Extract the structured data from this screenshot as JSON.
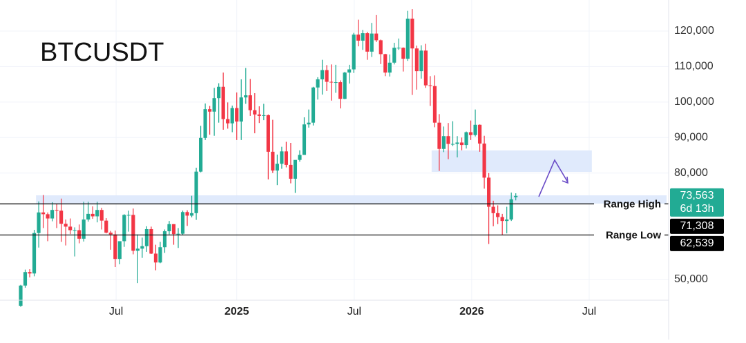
{
  "chart_data": {
    "type": "candlestick",
    "title": "BTCUSDT",
    "open": [
      42600,
      48300,
      52100,
      51700,
      63100,
      68900,
      68400,
      67200,
      69600,
      69400,
      65700,
      64900,
      63900,
      63900,
      61500,
      66900,
      68500,
      67800,
      69600,
      66600,
      63200,
      62700,
      55800,
      60800,
      68200,
      68200,
      58100,
      58700,
      59400,
      64200,
      57300,
      54800,
      59100,
      63600,
      65600,
      62800,
      62900,
      69000,
      68000,
      68700,
      80400,
      89900,
      98000,
      97300,
      101100,
      104300,
      95200,
      94000,
      98300,
      94500,
      101300,
      101900,
      97700,
      96500,
      96100,
      96300,
      86000,
      80700,
      82600,
      86100,
      82300,
      78400,
      83700,
      85100,
      93700,
      94200,
      104100,
      106400,
      109000,
      105700,
      105600,
      105600,
      100900,
      108300,
      109200,
      119000,
      117300,
      119400,
      114200,
      119300,
      117400,
      113500,
      108300,
      111100,
      115300,
      115300,
      112200,
      123500,
      115100,
      108700,
      114500,
      104700,
      104500,
      94200,
      86800,
      90400,
      88200,
      88200,
      88600,
      87900,
      91500,
      90700,
      93600,
      88300,
      78700,
      70500,
      68700,
      67600,
      66500,
      66900,
      73200
    ],
    "high": [
      48500,
      52800,
      52900,
      64000,
      72000,
      73800,
      68900,
      71800,
      71300,
      72800,
      66900,
      67200,
      64700,
      65500,
      71900,
      71900,
      70600,
      71900,
      70200,
      67300,
      63700,
      63800,
      60800,
      68400,
      69400,
      70000,
      62700,
      61800,
      65000,
      64900,
      59800,
      60600,
      64100,
      66500,
      65600,
      64500,
      69400,
      69500,
      73600,
      81500,
      93300,
      99600,
      98900,
      104000,
      105300,
      108300,
      99900,
      99000,
      102700,
      106400,
      109600,
      106500,
      102500,
      98800,
      99500,
      96500,
      95000,
      85200,
      87400,
      88800,
      88500,
      83500,
      86400,
      95700,
      97900,
      104300,
      107000,
      111900,
      110400,
      110600,
      110500,
      106100,
      108500,
      110500,
      119500,
      123200,
      120300,
      119800,
      122300,
      124500,
      117600,
      113600,
      113400,
      116700,
      117900,
      115400,
      125700,
      126200,
      115900,
      116000,
      116400,
      107300,
      107500,
      96600,
      93100,
      94100,
      94600,
      90400,
      90000,
      91700,
      94800,
      97900,
      93700,
      90500,
      80000,
      72200,
      70900,
      68500,
      70500,
      74500,
      74300
    ],
    "low": [
      42300,
      47700,
      50600,
      50900,
      59000,
      64500,
      60800,
      66400,
      64500,
      60600,
      59600,
      62800,
      56500,
      60200,
      60700,
      66300,
      67100,
      66100,
      64100,
      63000,
      58400,
      53500,
      54300,
      59200,
      63500,
      57100,
      49000,
      56100,
      57800,
      57200,
      52600,
      54600,
      57500,
      62700,
      59800,
      58900,
      62600,
      65100,
      67500,
      66800,
      80200,
      89300,
      90800,
      90500,
      94200,
      92200,
      92500,
      91500,
      89300,
      89300,
      99500,
      96100,
      91200,
      94100,
      94900,
      78200,
      80000,
      76600,
      81200,
      81600,
      77100,
      74400,
      83200,
      85100,
      92800,
      93400,
      100700,
      102100,
      103100,
      100400,
      102600,
      98200,
      100800,
      105200,
      108200,
      115700,
      114700,
      111900,
      112700,
      116900,
      110700,
      107300,
      107200,
      110600,
      114700,
      108600,
      111600,
      102000,
      103500,
      106600,
      104000,
      98900,
      92900,
      80600,
      85900,
      83900,
      87600,
      84400,
      86400,
      86900,
      89300,
      90300,
      86000,
      75600,
      60000,
      65000,
      65600,
      62500,
      63000,
      66500,
      72300
    ],
    "close": [
      48300,
      52100,
      51700,
      63100,
      68900,
      68400,
      67200,
      69600,
      69400,
      65700,
      64900,
      63900,
      63900,
      61500,
      66900,
      68500,
      67800,
      69600,
      66600,
      63200,
      62700,
      55800,
      60800,
      68200,
      68200,
      58100,
      58700,
      59400,
      64200,
      57300,
      54800,
      59100,
      63600,
      65600,
      62800,
      62900,
      69000,
      68000,
      68700,
      80400,
      89900,
      98000,
      97300,
      101100,
      104300,
      95200,
      94000,
      98300,
      94500,
      101300,
      101900,
      97700,
      96500,
      96100,
      96300,
      86000,
      80700,
      82600,
      86100,
      82300,
      78400,
      83700,
      85100,
      93700,
      94200,
      104100,
      106400,
      109000,
      105700,
      105600,
      105600,
      100900,
      108300,
      109200,
      119000,
      117300,
      119400,
      114200,
      119300,
      117400,
      113500,
      108300,
      111100,
      115300,
      115300,
      112200,
      123500,
      115100,
      108700,
      114500,
      104700,
      104500,
      94200,
      86800,
      90400,
      88200,
      88200,
      88600,
      87900,
      91500,
      90700,
      93600,
      88300,
      78700,
      70500,
      68700,
      67600,
      66500,
      66900,
      72600,
      73563
    ],
    "up_color": "#22ab94",
    "down_color": "#f23645",
    "xlim": [
      -4.6,
      143.5
    ],
    "xticks": [
      {
        "value": 21.2,
        "label": "Jul"
      },
      {
        "value": 48.0,
        "label": "2025"
      },
      {
        "value": 74.1,
        "label": "Jul"
      },
      {
        "value": 100.2,
        "label": "2026"
      },
      {
        "value": 126.3,
        "label": "Jul"
      }
    ],
    "ylim": [
      44170,
      128750
    ],
    "yticks": [
      {
        "value": 50000,
        "label": "50,000"
      },
      {
        "value": 80000,
        "label": "80,000"
      },
      {
        "value": 90000,
        "label": "90,000"
      },
      {
        "value": 100000,
        "label": "100,000"
      },
      {
        "value": 110000,
        "label": "110,000"
      },
      {
        "value": 120000,
        "label": "120,000"
      }
    ],
    "grid": true,
    "last_price": {
      "value": 73563,
      "label": "73,563",
      "countdown": "6d 13h"
    },
    "levels": [
      {
        "name": "Range High",
        "value": 71308,
        "label": "71,308"
      },
      {
        "name": "Range Low",
        "value": 62539,
        "label": "62,539"
      }
    ],
    "zones": [
      {
        "x": [
          3.4,
          143.5
        ],
        "y": [
          71390,
          73720
        ],
        "color": "#dbe6fb"
      },
      {
        "x": [
          91.3,
          126.9
        ],
        "y": [
          80334,
          86362
        ],
        "color": "#dbe6fb"
      }
    ]
  }
}
